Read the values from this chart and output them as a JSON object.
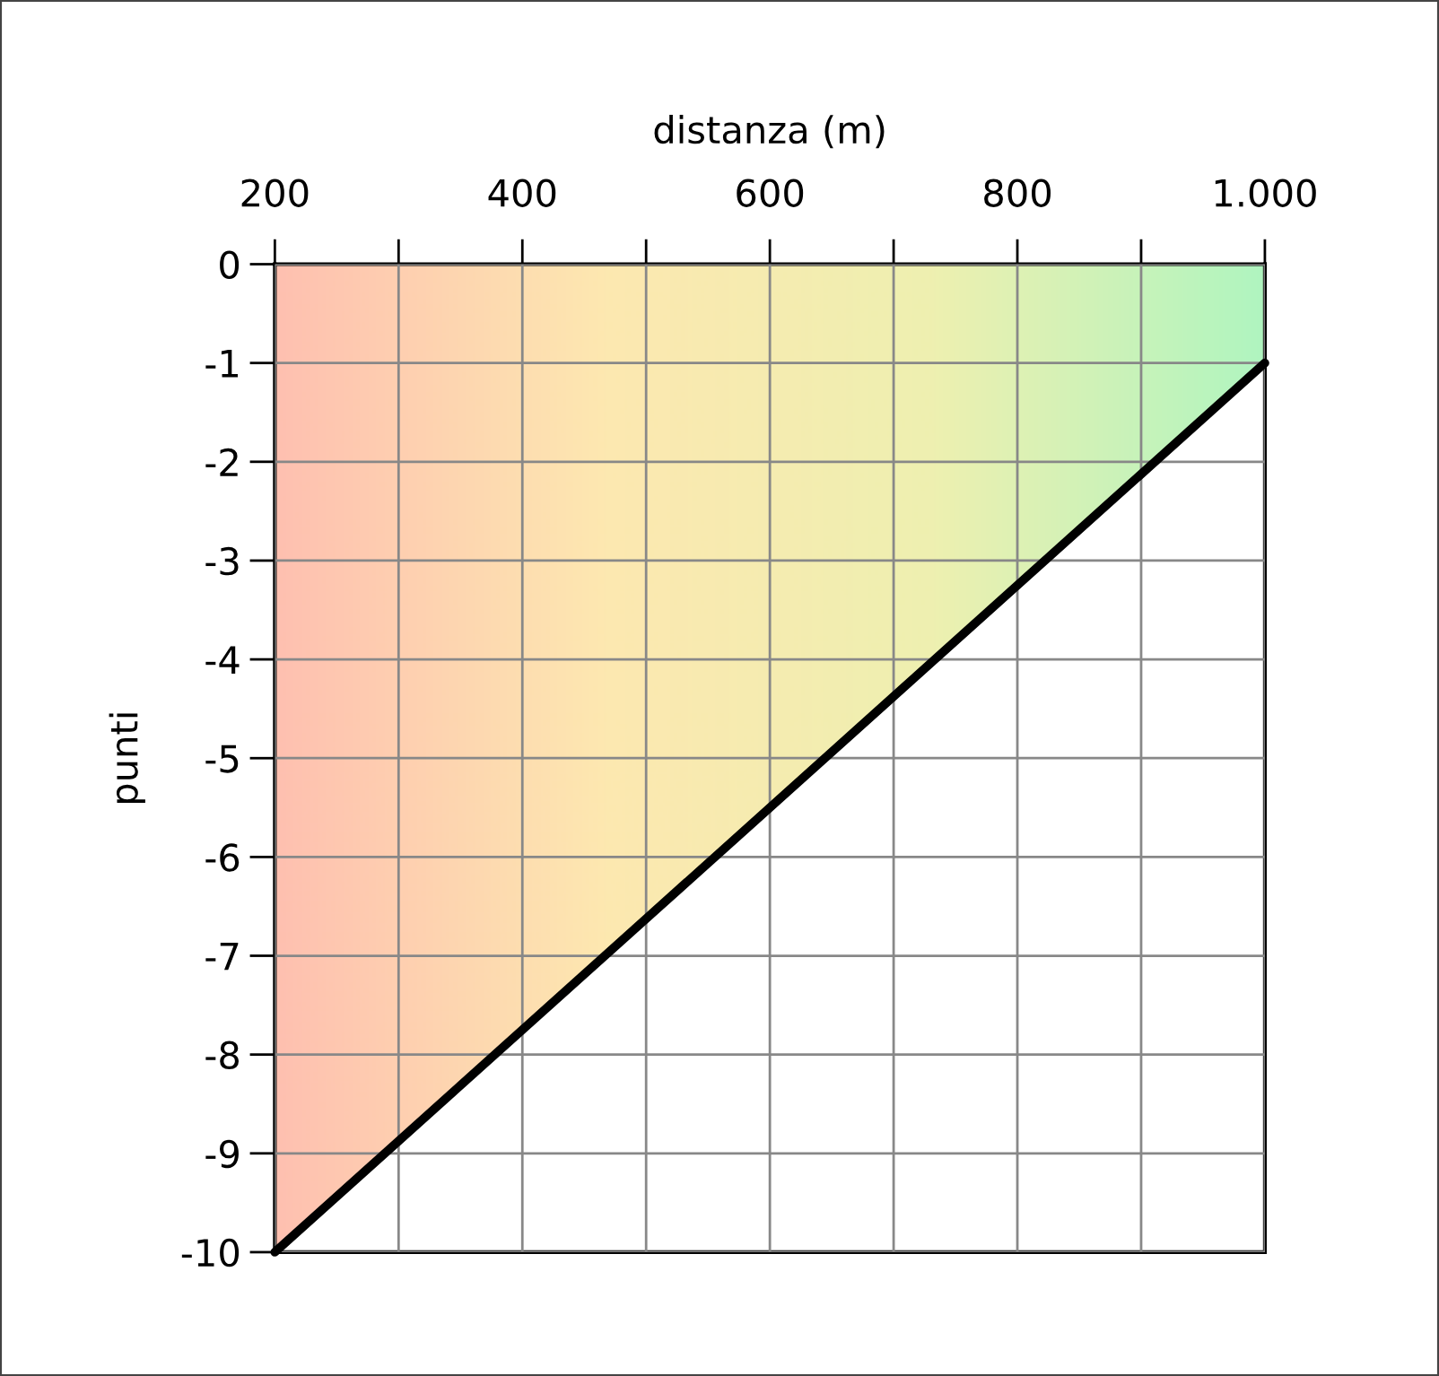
{
  "chart_data": {
    "type": "area",
    "xlabel": "distanza (m)",
    "ylabel": "punti",
    "x": [
      200,
      1000
    ],
    "series": [
      {
        "color": "#000000",
        "values": [
          -10,
          -1
        ]
      }
    ],
    "colors": [
      "#ffc0b0",
      "#fde8b0",
      "#eef0b0",
      "#b0f5c0"
    ],
    "xlim": [
      200,
      1000
    ],
    "xticks": [
      200,
      {
        "value": 300,
        "label": null
      },
      400,
      {
        "value": 500,
        "label": null
      },
      600,
      {
        "value": 700,
        "label": null
      },
      800,
      {
        "value": 900,
        "label": null
      },
      {
        "value": 1000,
        "label": "1.000"
      }
    ],
    "ylim": [
      -10,
      0
    ],
    "yticks": [
      0,
      -1,
      -2,
      -3,
      -4,
      -5,
      -6,
      -7,
      -8,
      -9,
      -10
    ],
    "grid": true
  }
}
